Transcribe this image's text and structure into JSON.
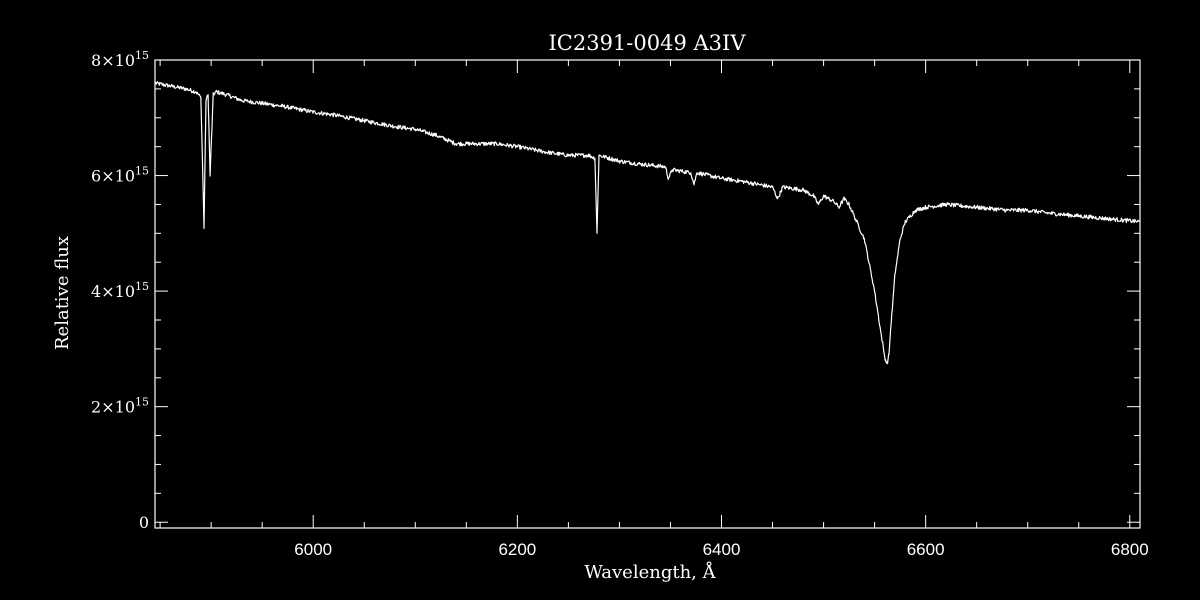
{
  "chart_data": {
    "type": "line",
    "title": "IC2391-0049   A3IV",
    "xlabel": "Wavelength, Å",
    "ylabel": "Relative flux",
    "xlim": [
      5845,
      6810
    ],
    "ylim": [
      -0.1,
      8.0
    ],
    "y_scale_note": "×10^15",
    "x_ticks": [
      {
        "value": 6000,
        "label": "6000"
      },
      {
        "value": 6200,
        "label": "6200"
      },
      {
        "value": 6400,
        "label": "6400"
      },
      {
        "value": 6600,
        "label": "6600"
      },
      {
        "value": 6800,
        "label": "6800"
      }
    ],
    "y_ticks": [
      {
        "value": 0,
        "label": "0",
        "exp": ""
      },
      {
        "value": 2,
        "label": "2×10",
        "exp": "15"
      },
      {
        "value": 4,
        "label": "4×10",
        "exp": "15"
      },
      {
        "value": 6,
        "label": "6×10",
        "exp": "15"
      },
      {
        "value": 8,
        "label": "8×10",
        "exp": "15"
      }
    ],
    "grid": false,
    "colors": {
      "background": "#000000",
      "foreground": "#ffffff"
    },
    "series": [
      {
        "x": [
          5845,
          5860,
          5875,
          5885,
          5890,
          5893,
          5895,
          5897,
          5899,
          5902,
          5905,
          5915,
          5930,
          5950,
          5970,
          6000,
          6020,
          6050,
          6080,
          6100,
          6120,
          6140,
          6160,
          6180,
          6200,
          6230,
          6250,
          6270,
          6276,
          6278,
          6280,
          6300,
          6320,
          6345,
          6348,
          6352,
          6370,
          6373,
          6376,
          6400,
          6420,
          6450,
          6455,
          6460,
          6480,
          6490,
          6495,
          6500,
          6505,
          6510,
          6515,
          6520,
          6525,
          6530,
          6540,
          6550,
          6556,
          6560,
          6562,
          6563,
          6564,
          6566,
          6570,
          6575,
          6580,
          6590,
          6600,
          6620,
          6650,
          6680,
          6700,
          6720,
          6750,
          6780,
          6810
        ],
        "y": [
          7.6,
          7.55,
          7.5,
          7.45,
          7.35,
          5.1,
          7.3,
          7.4,
          6.0,
          7.4,
          7.45,
          7.4,
          7.3,
          7.25,
          7.2,
          7.1,
          7.05,
          6.95,
          6.85,
          6.8,
          6.7,
          6.55,
          6.55,
          6.55,
          6.5,
          6.4,
          6.35,
          6.35,
          6.3,
          5.0,
          6.35,
          6.25,
          6.2,
          6.15,
          5.95,
          6.1,
          6.05,
          5.85,
          6.05,
          5.95,
          5.9,
          5.8,
          5.6,
          5.8,
          5.75,
          5.65,
          5.5,
          5.65,
          5.6,
          5.55,
          5.45,
          5.6,
          5.5,
          5.3,
          4.9,
          4.0,
          3.3,
          2.85,
          2.75,
          2.8,
          2.9,
          3.4,
          4.3,
          4.9,
          5.2,
          5.4,
          5.45,
          5.5,
          5.45,
          5.4,
          5.4,
          5.35,
          5.3,
          5.25,
          5.2
        ]
      }
    ]
  }
}
